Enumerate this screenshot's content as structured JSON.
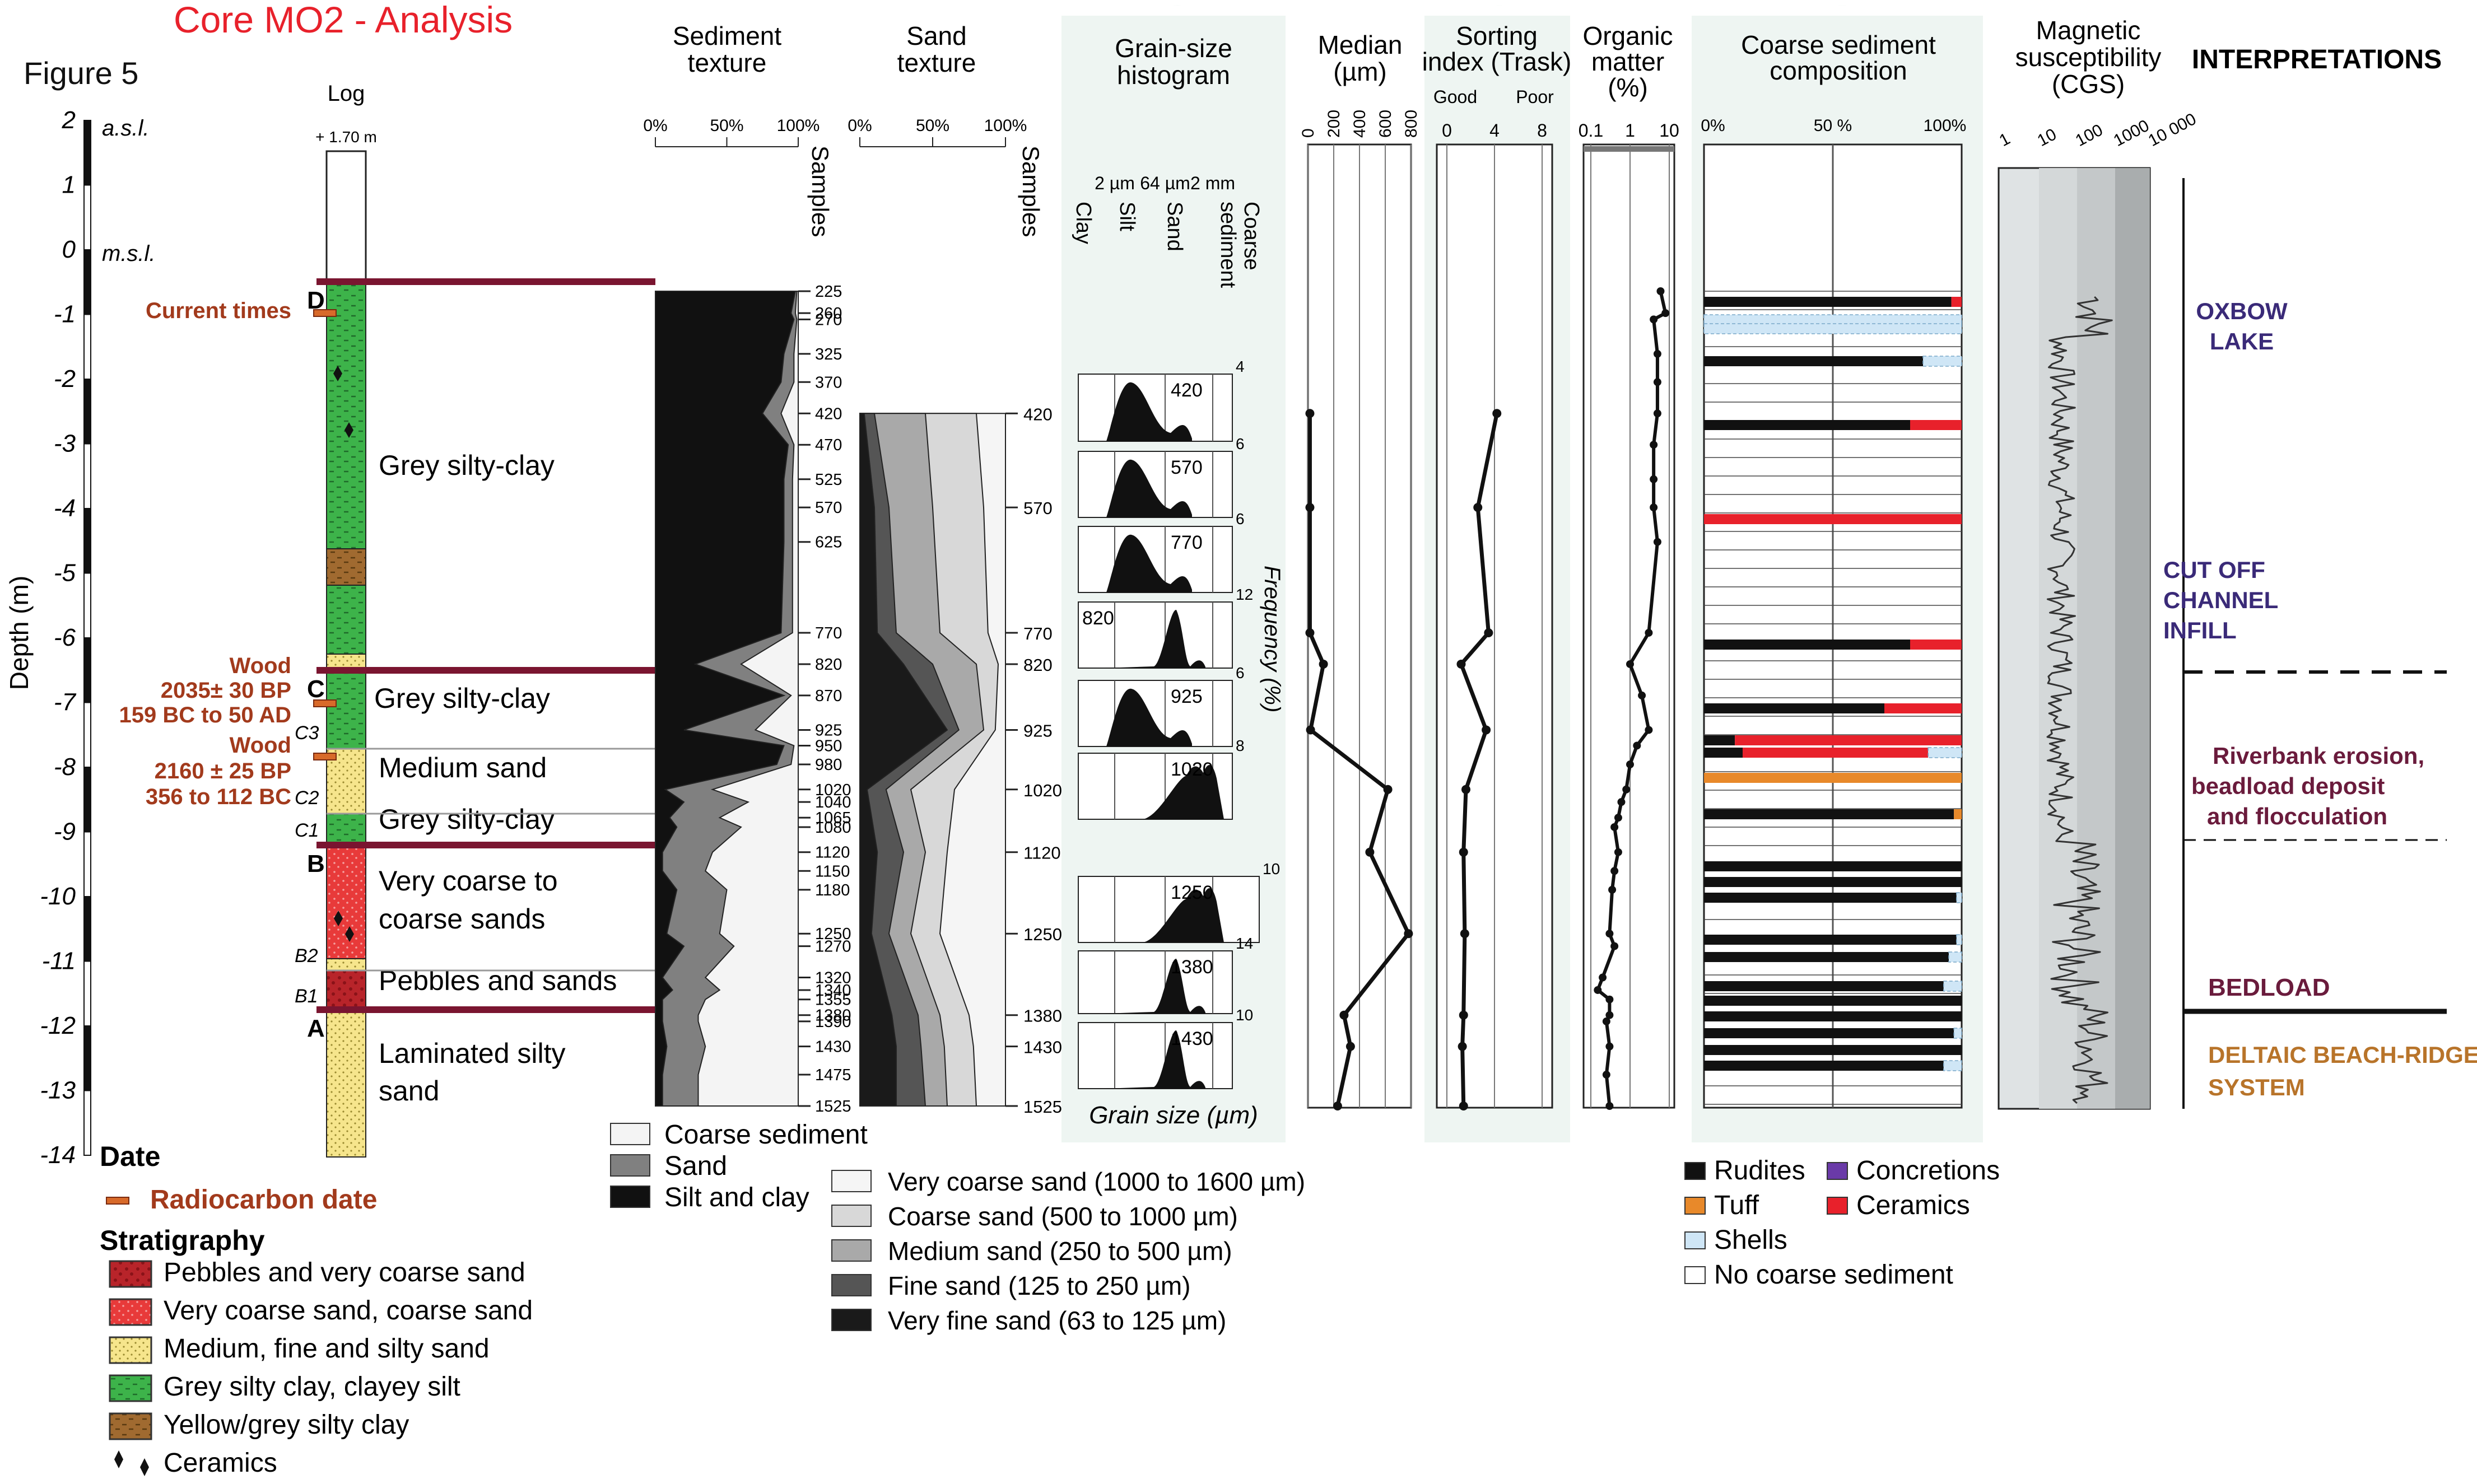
{
  "title": "Core MO2 - Analysis",
  "figure_label": "Figure 5",
  "colors": {
    "title_red": "#e8212b",
    "wood": "#a23a1c",
    "boundary": "#7a1530",
    "oxbow": "#3a2a78",
    "river": "#6a1b3c",
    "delta": "#b8742a",
    "bg_panel": "#eef5f2",
    "pebbles": "#b8242a",
    "vcoarse": "#e84040",
    "medium": "#f6e58c",
    "clay": "#3db34a",
    "yellow_clay": "#a06a30"
  },
  "depth_axis": {
    "label": "Depth (m)",
    "asl": "a.s.l.",
    "msl": "m.s.l.",
    "ticks": [
      "2",
      "1",
      "0",
      "-1",
      "-2",
      "-3",
      "-4",
      "-5",
      "-6",
      "-7",
      "-8",
      "-9",
      "-10",
      "-11",
      "-12",
      "-13",
      "-14"
    ]
  },
  "log": {
    "title": "Log",
    "top_label": "+ 1.70 m",
    "current_times": "Current times",
    "units": [
      {
        "name": "Grey silty-clay",
        "type": "clay"
      },
      {
        "name": "Grey silty-clay",
        "type": "clay"
      },
      {
        "name": "Medium sand",
        "type": "medium"
      },
      {
        "name": "Grey silty-clay",
        "type": "clay"
      },
      {
        "name": "Very coarse to coarse sands",
        "type": "vcoarse"
      },
      {
        "name": "Pebbles and sands",
        "type": "pebbles"
      },
      {
        "name": "Laminated silty sand",
        "type": "medium"
      }
    ],
    "unit_letters": [
      "D",
      "C",
      "B",
      "A"
    ],
    "sub_letters": [
      "C3",
      "C2",
      "C1",
      "B2",
      "B1"
    ],
    "wood_dates": [
      {
        "title": "Wood",
        "bp": "2035± 30 BP",
        "cal": "159 BC to 50 AD"
      },
      {
        "title": "Wood",
        "bp": "2160 ± 25 BP",
        "cal": "356 to 112 BC"
      }
    ]
  },
  "sediment_texture": {
    "title": "Sediment texture",
    "x_ticks": [
      "0%",
      "50%",
      "100%"
    ],
    "samples_label": "Samples",
    "samples": [
      "225",
      "260",
      "270",
      "325",
      "370",
      "420",
      "470",
      "525",
      "570",
      "625",
      "770",
      "820",
      "870",
      "925",
      "950",
      "980",
      "1020",
      "1040",
      "1065",
      "1080",
      "1120",
      "1150",
      "1180",
      "1250",
      "1270",
      "1320",
      "1340",
      "1355",
      "1380",
      "1390",
      "1430",
      "1475",
      "1525"
    ],
    "legend": [
      "Coarse sediment",
      "Sand",
      "Silt and clay"
    ]
  },
  "sand_texture": {
    "title": "Sand texture",
    "x_ticks": [
      "0%",
      "50%",
      "100%"
    ],
    "samples_label": "Samples",
    "samples": [
      "420",
      "570",
      "770",
      "820",
      "925",
      "1020",
      "1120",
      "1250",
      "1380",
      "1430",
      "1525"
    ],
    "legend": [
      "Very coarse sand (1000 to 1600 µm)",
      "Coarse sand (500 to 1000 µm)",
      "Medium sand (250 to 500 µm)",
      "Fine sand (125 to 250 µm)",
      "Very fine sand (63 to 125 µm)"
    ]
  },
  "grain_histogram": {
    "title": "Grain-size histogram",
    "class_labels": [
      "Clay",
      "Silt",
      "Sand",
      "Coarse sediment"
    ],
    "size_ticks": [
      "2 µm",
      "64 µm",
      "2 mm"
    ],
    "y_label": "Frequency (%)",
    "x_label": "Grain size (µm)",
    "boxes": [
      {
        "sample": "420",
        "ymax": "4"
      },
      {
        "sample": "570",
        "ymax": "6"
      },
      {
        "sample": "770",
        "ymax": "6"
      },
      {
        "sample": "820",
        "ymax": "12"
      },
      {
        "sample": "925",
        "ymax": "6"
      },
      {
        "sample": "1020",
        "ymax": "8"
      },
      {
        "sample": "1250",
        "ymax": "10"
      },
      {
        "sample": "1380",
        "ymax": "14"
      },
      {
        "sample": "1430",
        "ymax": "10"
      }
    ]
  },
  "median": {
    "title": "Median (µm)",
    "x_ticks": [
      "0",
      "200",
      "400",
      "600",
      "800"
    ]
  },
  "sorting": {
    "title": "Sorting index (Trask)",
    "good": "Good",
    "poor": "Poor",
    "x_ticks": [
      "0",
      "4",
      "8"
    ]
  },
  "organic": {
    "title": "Organic matter (%)",
    "x_ticks": [
      "0.1",
      "1",
      "10"
    ]
  },
  "coarse_comp": {
    "title": "Coarse sediment composition",
    "x_ticks": [
      "0%",
      "50 %",
      "100%"
    ],
    "legend": [
      "Rudites",
      "Concretions",
      "Tuff",
      "Ceramics",
      "Shells",
      "No coarse sediment"
    ]
  },
  "magnetic": {
    "title": "Magnetic susceptibility (CGS)",
    "x_ticks": [
      "1",
      "10",
      "100",
      "1000",
      "10 000"
    ]
  },
  "interpretations": {
    "title": "INTERPRETATIONS",
    "items": [
      {
        "label": "OXBOW LAKE",
        "color": "#3a2a78"
      },
      {
        "label": "CUT OFF CHANNEL INFILL",
        "color": "#3a2a78"
      },
      {
        "label": "Riverbank erosion, beadload deposit and flocculation",
        "color": "#6a1b3c"
      },
      {
        "label": "BEDLOAD",
        "color": "#6a1b3c"
      },
      {
        "label": "DELTAIC BEACH-RIDGE SYSTEM",
        "color": "#b8742a"
      }
    ]
  },
  "legend": {
    "date_title": "Date",
    "radiocarbon": "Radiocarbon date",
    "strat_title": "Stratigraphy",
    "strat_items": [
      "Pebbles and very coarse sand",
      "Very coarse sand, coarse sand",
      "Medium, fine and silty sand",
      "Grey silty clay, clayey silt",
      "Yellow/grey silty clay",
      "Ceramics"
    ]
  },
  "chart_data": {
    "type": "line",
    "depth_cm": [
      225,
      260,
      270,
      325,
      370,
      420,
      470,
      525,
      570,
      625,
      770,
      820,
      870,
      925,
      950,
      980,
      1020,
      1040,
      1065,
      1080,
      1120,
      1150,
      1180,
      1250,
      1270,
      1320,
      1340,
      1355,
      1380,
      1390,
      1430,
      1475,
      1525
    ],
    "median_um": {
      "depth_cm": [
        420,
        570,
        770,
        820,
        925,
        1020,
        1120,
        1250,
        1380,
        1430,
        1525
      ],
      "values": [
        15,
        15,
        15,
        120,
        20,
        620,
        480,
        780,
        280,
        330,
        230
      ]
    },
    "sorting_index": {
      "depth_cm": [
        420,
        570,
        770,
        820,
        925,
        1020,
        1120,
        1250,
        1380,
        1430,
        1525
      ],
      "values": [
        4.2,
        2.6,
        3.5,
        1.2,
        3.3,
        1.6,
        1.4,
        1.5,
        1.4,
        1.3,
        1.4
      ]
    },
    "organic_matter_pct": {
      "depth_cm": [
        225,
        260,
        270,
        325,
        370,
        420,
        470,
        525,
        570,
        625,
        770,
        820,
        870,
        925,
        950,
        980,
        1020,
        1040,
        1065,
        1080,
        1120,
        1150,
        1180,
        1250,
        1270,
        1320,
        1340,
        1355,
        1380,
        1390,
        1430,
        1475,
        1525
      ],
      "values": [
        6,
        8,
        4,
        5,
        5,
        5,
        4,
        4,
        4,
        5,
        3,
        1,
        2,
        3,
        1.5,
        1,
        0.8,
        0.6,
        0.5,
        0.4,
        0.5,
        0.4,
        0.35,
        0.3,
        0.4,
        0.2,
        0.15,
        0.3,
        0.3,
        0.25,
        0.3,
        0.25,
        0.3
      ]
    }
  }
}
